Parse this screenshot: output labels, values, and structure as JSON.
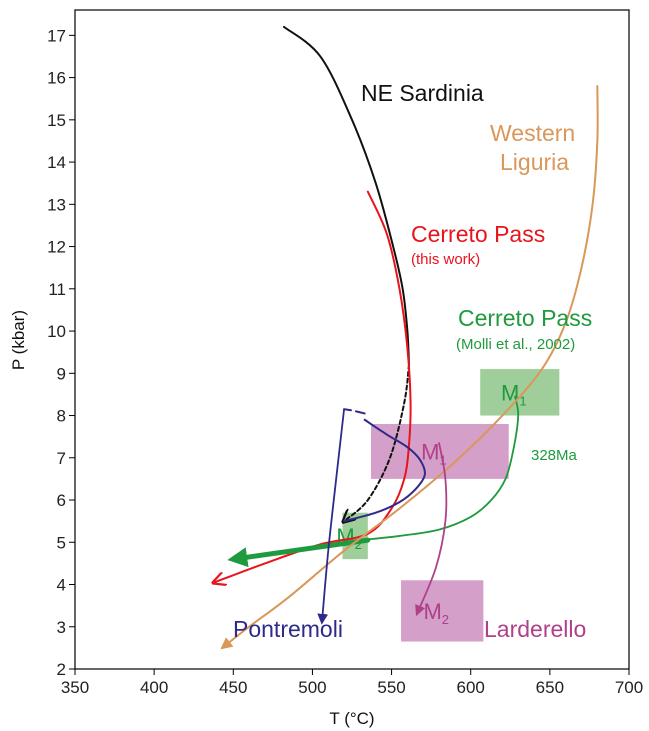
{
  "chart_data": {
    "type": "line",
    "title": "",
    "xlabel": "T (°C)",
    "ylabel": "P (kbar)",
    "xlim": [
      350,
      700
    ],
    "ylim": [
      2,
      17.6
    ],
    "grid": false,
    "x_ticks": [
      350,
      400,
      450,
      500,
      550,
      600,
      650,
      700
    ],
    "y_ticks": [
      2,
      3,
      4,
      5,
      6,
      7,
      8,
      9,
      10,
      11,
      12,
      13,
      14,
      15,
      16,
      17
    ],
    "colors": {
      "ne_sardinia": "#111111",
      "cerreto_this_work": "#e8141c",
      "cerreto_molli": "#1f9a3e",
      "western_liguria": "#d9975a",
      "pontremoli": "#2e2a8a",
      "larderello": "#b0408a",
      "green_box": "#8fc58a",
      "purple_box": "#cc8ec0"
    },
    "series": [
      {
        "name": "NE Sardinia",
        "style": "solid",
        "arrow": false,
        "x": [
          482,
          505,
          525,
          540,
          551,
          557,
          560,
          561
        ],
        "y": [
          17.2,
          16.5,
          15.0,
          13.5,
          12.0,
          11.0,
          10.0,
          9.2
        ]
      },
      {
        "name": "NE Sardinia (dashed)",
        "style": "dashed",
        "arrow": true,
        "x": [
          561,
          558,
          549,
          535,
          520
        ],
        "y": [
          9.2,
          8.3,
          7.0,
          6.0,
          5.5
        ]
      },
      {
        "name": "Cerreto Pass (this work)",
        "style": "solid",
        "arrow": true,
        "x": [
          535,
          547,
          555,
          560,
          562,
          561,
          558,
          550,
          535,
          505,
          470,
          438
        ],
        "y": [
          13.3,
          12.3,
          11.0,
          9.6,
          8.3,
          7.3,
          6.5,
          5.8,
          5.2,
          4.95,
          4.5,
          4.05
        ]
      },
      {
        "name": "Cerreto Pass (Molli et al., 2002)",
        "style": "solid",
        "arrow": false,
        "x": [
          628,
          630,
          627,
          622,
          613,
          600,
          580,
          555,
          530
        ],
        "y": [
          8.45,
          8.0,
          7.2,
          6.5,
          6.0,
          5.6,
          5.3,
          5.15,
          5.05
        ]
      },
      {
        "name": "Cerreto Pass (Molli et al., 2002) arrow",
        "style": "thick",
        "arrow": true,
        "x": [
          535,
          450
        ],
        "y": [
          5.05,
          4.6
        ]
      },
      {
        "name": "Western Liguria",
        "style": "solid",
        "arrow": true,
        "x": [
          680,
          680,
          677,
          670,
          660,
          645,
          620,
          590,
          555,
          520,
          485,
          460,
          443
        ],
        "y": [
          15.8,
          14.5,
          13.0,
          11.5,
          10.2,
          9.1,
          8.0,
          6.9,
          5.8,
          4.8,
          3.7,
          3.0,
          2.5
        ]
      },
      {
        "name": "Pontremoli solid",
        "style": "solid",
        "arrow": false,
        "x": [
          520,
          540,
          555,
          565,
          571,
          568,
          560,
          547,
          533
        ],
        "y": [
          5.5,
          5.7,
          5.95,
          6.25,
          6.6,
          6.95,
          7.25,
          7.55,
          7.9
        ]
      },
      {
        "name": "Pontremoli dashed",
        "style": "dashed",
        "arrow": false,
        "x": [
          533,
          525,
          520
        ],
        "y": [
          8.05,
          8.12,
          8.15
        ]
      },
      {
        "name": "Pontremoli",
        "style": "solid",
        "arrow": true,
        "x": [
          520,
          515,
          510,
          506
        ],
        "y": [
          8.15,
          6.5,
          4.8,
          3.1
        ]
      },
      {
        "name": "Larderello",
        "style": "solid",
        "arrow": true,
        "x": [
          580,
          584,
          584,
          578,
          566
        ],
        "y": [
          7.35,
          6.5,
          5.5,
          4.4,
          3.3
        ]
      }
    ],
    "regions": [
      {
        "label": "M",
        "subscript": "1",
        "color": "green",
        "x": [
          606,
          656
        ],
        "y": [
          8.0,
          9.1
        ]
      },
      {
        "label": "M",
        "subscript": "1",
        "color": "purple",
        "x": [
          537,
          624
        ],
        "y": [
          6.5,
          7.8
        ]
      },
      {
        "label": "M",
        "subscript": "2",
        "color": "green",
        "x": [
          519,
          535
        ],
        "y": [
          4.6,
          5.7
        ]
      },
      {
        "label": "M",
        "subscript": "2",
        "color": "purple",
        "x": [
          556,
          608
        ],
        "y": [
          2.65,
          4.1
        ]
      }
    ],
    "annotations": {
      "ne_sardinia": "NE Sardinia",
      "western_liguria_1": "Western",
      "western_liguria_2": "Liguria",
      "cerreto_this_work": "Cerreto Pass",
      "cerreto_this_work_note": "(this work)",
      "cerreto_molli": "Cerreto Pass",
      "cerreto_molli_note": "(Molli et al., 2002)",
      "age_328": "328Ma",
      "pontremoli": "Pontremoli",
      "larderello": "Larderello"
    }
  }
}
